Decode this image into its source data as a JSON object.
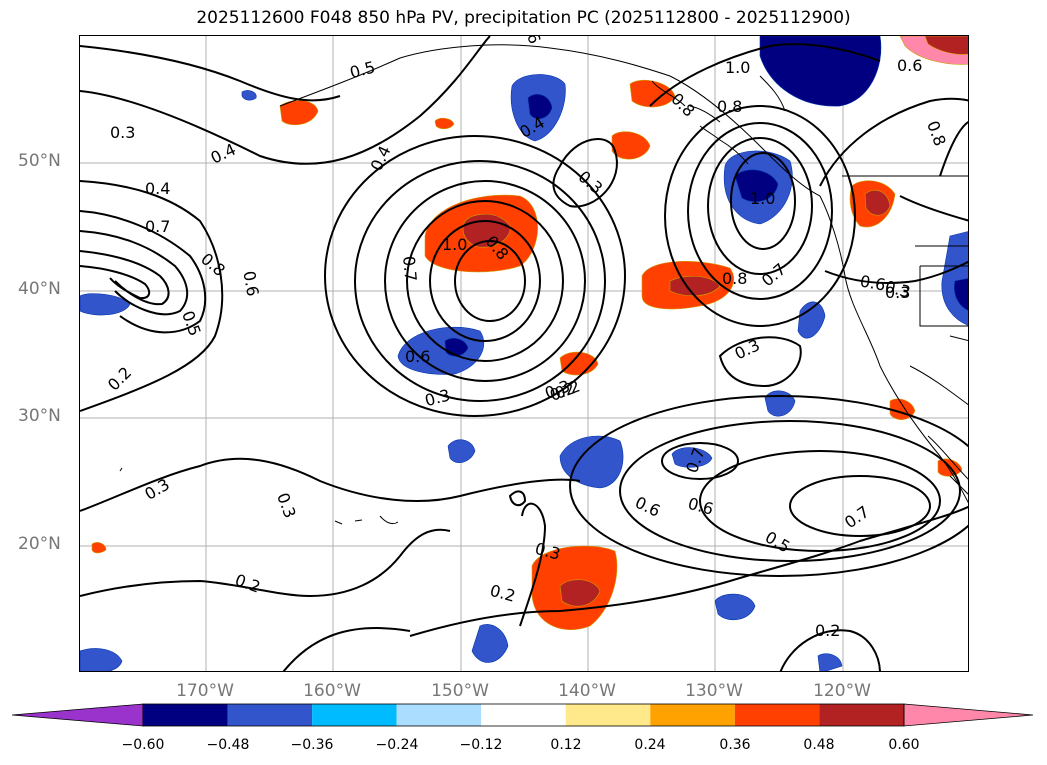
{
  "title": "2025112600 F048 850 hPa PV, precipitation PC (2025112800 - 2025112900)",
  "map": {
    "lat_labels": [
      "50°N",
      "40°N",
      "30°N",
      "20°N"
    ],
    "lon_labels": [
      "170°W",
      "160°W",
      "150°W",
      "140°W",
      "130°W",
      "120°W"
    ],
    "grid": true
  },
  "contour_labels": [
    "0.3",
    "0.4",
    "0.4",
    "0.7",
    "0.8",
    "0.6",
    "0.5",
    "0.4",
    "0.7",
    "1.0",
    "0.8",
    "0.6",
    "0.3",
    "0.4",
    "0.3",
    "1.0",
    "0.8",
    "0.8",
    "0.7",
    "0.6",
    "0.3",
    "0.3",
    "0.2",
    "0.6",
    "0.3",
    "0.2",
    "0.3",
    "0.3",
    "0.2",
    "0.3",
    "0.6",
    "0.7",
    "0.5",
    "0.7",
    "0.2",
    "0.2",
    "1.0",
    "0.8",
    "0.6",
    "0.8",
    "0.3",
    "0.2",
    "0.5",
    "6"
  ],
  "colorbar": {
    "ticks": [
      "−0.60",
      "−0.48",
      "−0.36",
      "−0.24",
      "−0.12",
      "0.12",
      "0.24",
      "0.36",
      "0.48",
      "0.60"
    ],
    "colors": [
      "#9933cc",
      "#000080",
      "#3355cc",
      "#00bbff",
      "#aaddff",
      "#ffffff",
      "#ffe98a",
      "#ffa200",
      "#ff4000",
      "#b22222",
      "#ff88aa"
    ]
  }
}
